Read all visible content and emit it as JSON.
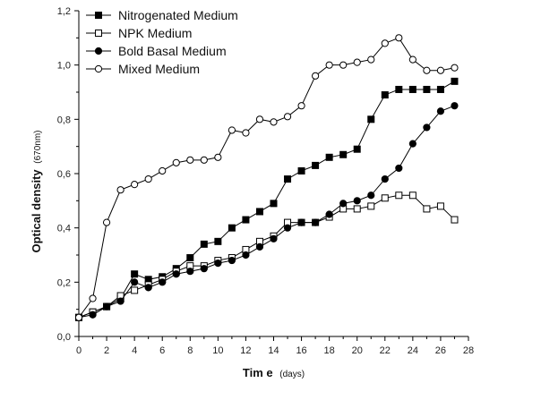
{
  "chart_data": {
    "type": "line",
    "title": "",
    "xlabel_main": "Tim e",
    "xlabel_unit": "(days)",
    "ylabel_main": "Optical density",
    "ylabel_unit": "(670nm)",
    "xlim": [
      0,
      28
    ],
    "ylim": [
      0.0,
      1.2
    ],
    "x_ticks": [
      0,
      2,
      4,
      6,
      8,
      10,
      12,
      14,
      16,
      18,
      20,
      22,
      24,
      26,
      28
    ],
    "y_ticks": [
      0.0,
      0.2,
      0.4,
      0.6,
      0.8,
      1.0,
      1.2
    ],
    "y_tick_labels": [
      "0,0",
      "0,2",
      "0,4",
      "0,6",
      "0,8",
      "1,0",
      "1,2"
    ],
    "legend_position": "top-left",
    "grid": false,
    "x": [
      0,
      1,
      2,
      3,
      4,
      5,
      6,
      7,
      8,
      9,
      10,
      11,
      12,
      13,
      14,
      15,
      16,
      17,
      18,
      19,
      20,
      21,
      22,
      23,
      24,
      25,
      26,
      27
    ],
    "series": [
      {
        "name": "Nitrogenated Medium",
        "marker": "filled-square",
        "values": [
          0.07,
          0.09,
          0.11,
          0.14,
          0.23,
          0.21,
          0.22,
          0.25,
          0.29,
          0.34,
          0.35,
          0.4,
          0.43,
          0.46,
          0.49,
          0.58,
          0.61,
          0.63,
          0.66,
          0.67,
          0.69,
          0.8,
          0.89,
          0.91,
          0.91,
          0.91,
          0.91,
          0.94
        ]
      },
      {
        "name": "NPK Medium",
        "marker": "open-square",
        "values": [
          0.07,
          0.09,
          0.11,
          0.15,
          0.17,
          0.19,
          0.21,
          0.24,
          0.26,
          0.26,
          0.28,
          0.29,
          0.32,
          0.35,
          0.37,
          0.42,
          0.42,
          0.42,
          0.44,
          0.47,
          0.47,
          0.48,
          0.51,
          0.52,
          0.52,
          0.47,
          0.48,
          0.43
        ]
      },
      {
        "name": "Bold Basal Medium",
        "marker": "filled-circle",
        "values": [
          0.07,
          0.08,
          0.11,
          0.13,
          0.2,
          0.18,
          0.2,
          0.23,
          0.24,
          0.25,
          0.27,
          0.28,
          0.3,
          0.33,
          0.36,
          0.4,
          0.42,
          0.42,
          0.45,
          0.49,
          0.5,
          0.52,
          0.58,
          0.62,
          0.71,
          0.77,
          0.83,
          0.85
        ]
      },
      {
        "name": "Mixed Medium",
        "marker": "open-circle",
        "values": [
          0.07,
          0.14,
          0.42,
          0.54,
          0.56,
          0.58,
          0.61,
          0.64,
          0.65,
          0.65,
          0.66,
          0.76,
          0.75,
          0.8,
          0.79,
          0.81,
          0.85,
          0.96,
          1.0,
          1.0,
          1.01,
          1.02,
          1.08,
          1.1,
          1.02,
          0.98,
          0.98,
          0.99
        ]
      }
    ]
  }
}
